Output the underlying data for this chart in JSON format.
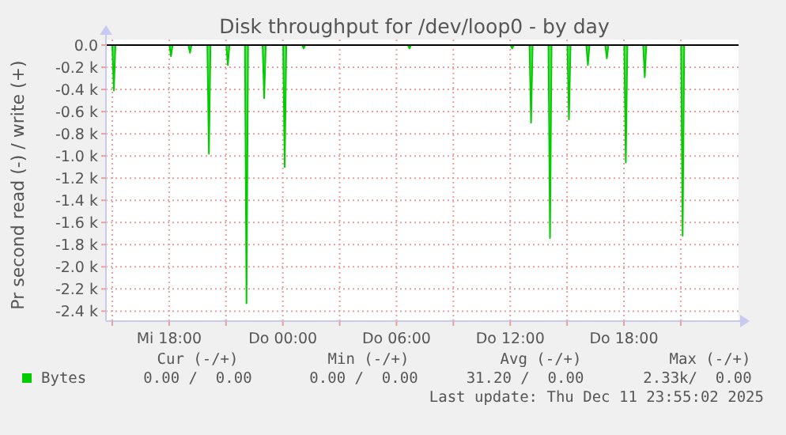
{
  "chart_data": {
    "type": "area",
    "title": "Disk throughput for /dev/loop0 - by day",
    "ylabel": "Pr second read (-) / write (+)",
    "series": [
      {
        "name": "Bytes",
        "color": "#00cc00",
        "x": [
          "2025-12-10T14:40",
          "2025-12-10T15:00",
          "2025-12-10T15:05",
          "2025-12-10T15:10",
          "2025-12-10T18:01",
          "2025-12-10T18:06",
          "2025-12-10T18:11",
          "2025-12-10T19:01",
          "2025-12-10T19:06",
          "2025-12-10T19:11",
          "2025-12-10T20:01",
          "2025-12-10T20:06",
          "2025-12-10T20:11",
          "2025-12-10T21:01",
          "2025-12-10T21:06",
          "2025-12-10T21:11",
          "2025-12-10T22:00",
          "2025-12-10T22:05",
          "2025-12-10T22:10",
          "2025-12-10T22:56",
          "2025-12-10T23:01",
          "2025-12-10T23:06",
          "2025-12-11T00:01",
          "2025-12-11T00:06",
          "2025-12-11T00:11",
          "2025-12-11T01:01",
          "2025-12-11T01:06",
          "2025-12-11T01:11",
          "2025-12-11T06:36",
          "2025-12-11T06:41",
          "2025-12-11T06:46",
          "2025-12-11T12:01",
          "2025-12-11T12:06",
          "2025-12-11T12:11",
          "2025-12-11T13:01",
          "2025-12-11T13:06",
          "2025-12-11T13:11",
          "2025-12-11T14:01",
          "2025-12-11T14:06",
          "2025-12-11T14:11",
          "2025-12-11T15:01",
          "2025-12-11T15:06",
          "2025-12-11T15:11",
          "2025-12-11T16:01",
          "2025-12-11T16:06",
          "2025-12-11T16:11",
          "2025-12-11T17:01",
          "2025-12-11T17:06",
          "2025-12-11T17:11",
          "2025-12-11T18:01",
          "2025-12-11T18:06",
          "2025-12-11T18:11",
          "2025-12-11T19:01",
          "2025-12-11T19:06",
          "2025-12-11T19:11",
          "2025-12-11T21:01",
          "2025-12-11T21:06",
          "2025-12-11T21:11",
          "2025-12-11T23:55"
        ],
        "values": [
          0,
          0,
          -0.41,
          0,
          0,
          -0.1,
          0,
          0,
          -0.07,
          0,
          0,
          -0.98,
          0,
          0,
          -0.18,
          0,
          0,
          -2.33,
          0,
          0,
          -0.48,
          0,
          0,
          -1.1,
          0,
          0,
          -0.03,
          0,
          0,
          -0.03,
          0,
          0,
          -0.03,
          0,
          0,
          -0.7,
          0,
          0,
          -1.74,
          0,
          0,
          -0.67,
          0,
          0,
          -0.18,
          0,
          0,
          -0.12,
          0,
          0,
          -1.06,
          0,
          0,
          -0.29,
          0,
          0,
          -1.72,
          0,
          0
        ]
      }
    ],
    "xlim": [
      "2025-12-10T14:40",
      "2025-12-12T00:03"
    ],
    "xticks": [
      {
        "value": "2025-12-10T15:00",
        "label": null
      },
      {
        "value": "2025-12-10T18:00",
        "label": "Mi 18:00"
      },
      {
        "value": "2025-12-10T21:00",
        "label": null
      },
      {
        "value": "2025-12-11T00:00",
        "label": "Do 00:00"
      },
      {
        "value": "2025-12-11T03:00",
        "label": null
      },
      {
        "value": "2025-12-11T06:00",
        "label": "Do 06:00"
      },
      {
        "value": "2025-12-11T09:00",
        "label": null
      },
      {
        "value": "2025-12-11T12:00",
        "label": "Do 12:00"
      },
      {
        "value": "2025-12-11T15:00",
        "label": null
      },
      {
        "value": "2025-12-11T18:00",
        "label": "Do 18:00"
      },
      {
        "value": "2025-12-11T21:00",
        "label": null
      }
    ],
    "ylim": [
      -2.49,
      0.05
    ],
    "yticks": [
      {
        "value": 0,
        "label": "0.0"
      },
      {
        "value": -0.2,
        "label": "-0.2 k"
      },
      {
        "value": -0.4,
        "label": "-0.4 k"
      },
      {
        "value": -0.6,
        "label": "-0.6 k"
      },
      {
        "value": -0.8,
        "label": "-0.8 k"
      },
      {
        "value": -1,
        "label": "-1.0 k"
      },
      {
        "value": -1.2,
        "label": "-1.2 k"
      },
      {
        "value": -1.4,
        "label": "-1.4 k"
      },
      {
        "value": -1.6,
        "label": "-1.6 k"
      },
      {
        "value": -1.8,
        "label": "-1.8 k"
      },
      {
        "value": -2,
        "label": "-2.0 k"
      },
      {
        "value": -2.2,
        "label": "-2.2 k"
      },
      {
        "value": -2.4,
        "label": "-2.4 k"
      }
    ],
    "grid": true,
    "legend": "bottom left",
    "annotations": [
      "Cur (-/+)",
      "Min (-/+)",
      "Avg (-/+)",
      "Max (-/+)",
      "0.00 /  0.00",
      "0.00 /  0.00",
      "31.20 /  0.00",
      "2.33k/  0.00",
      "Last update: Thu Dec 11 23:55:02 2025"
    ]
  }
}
